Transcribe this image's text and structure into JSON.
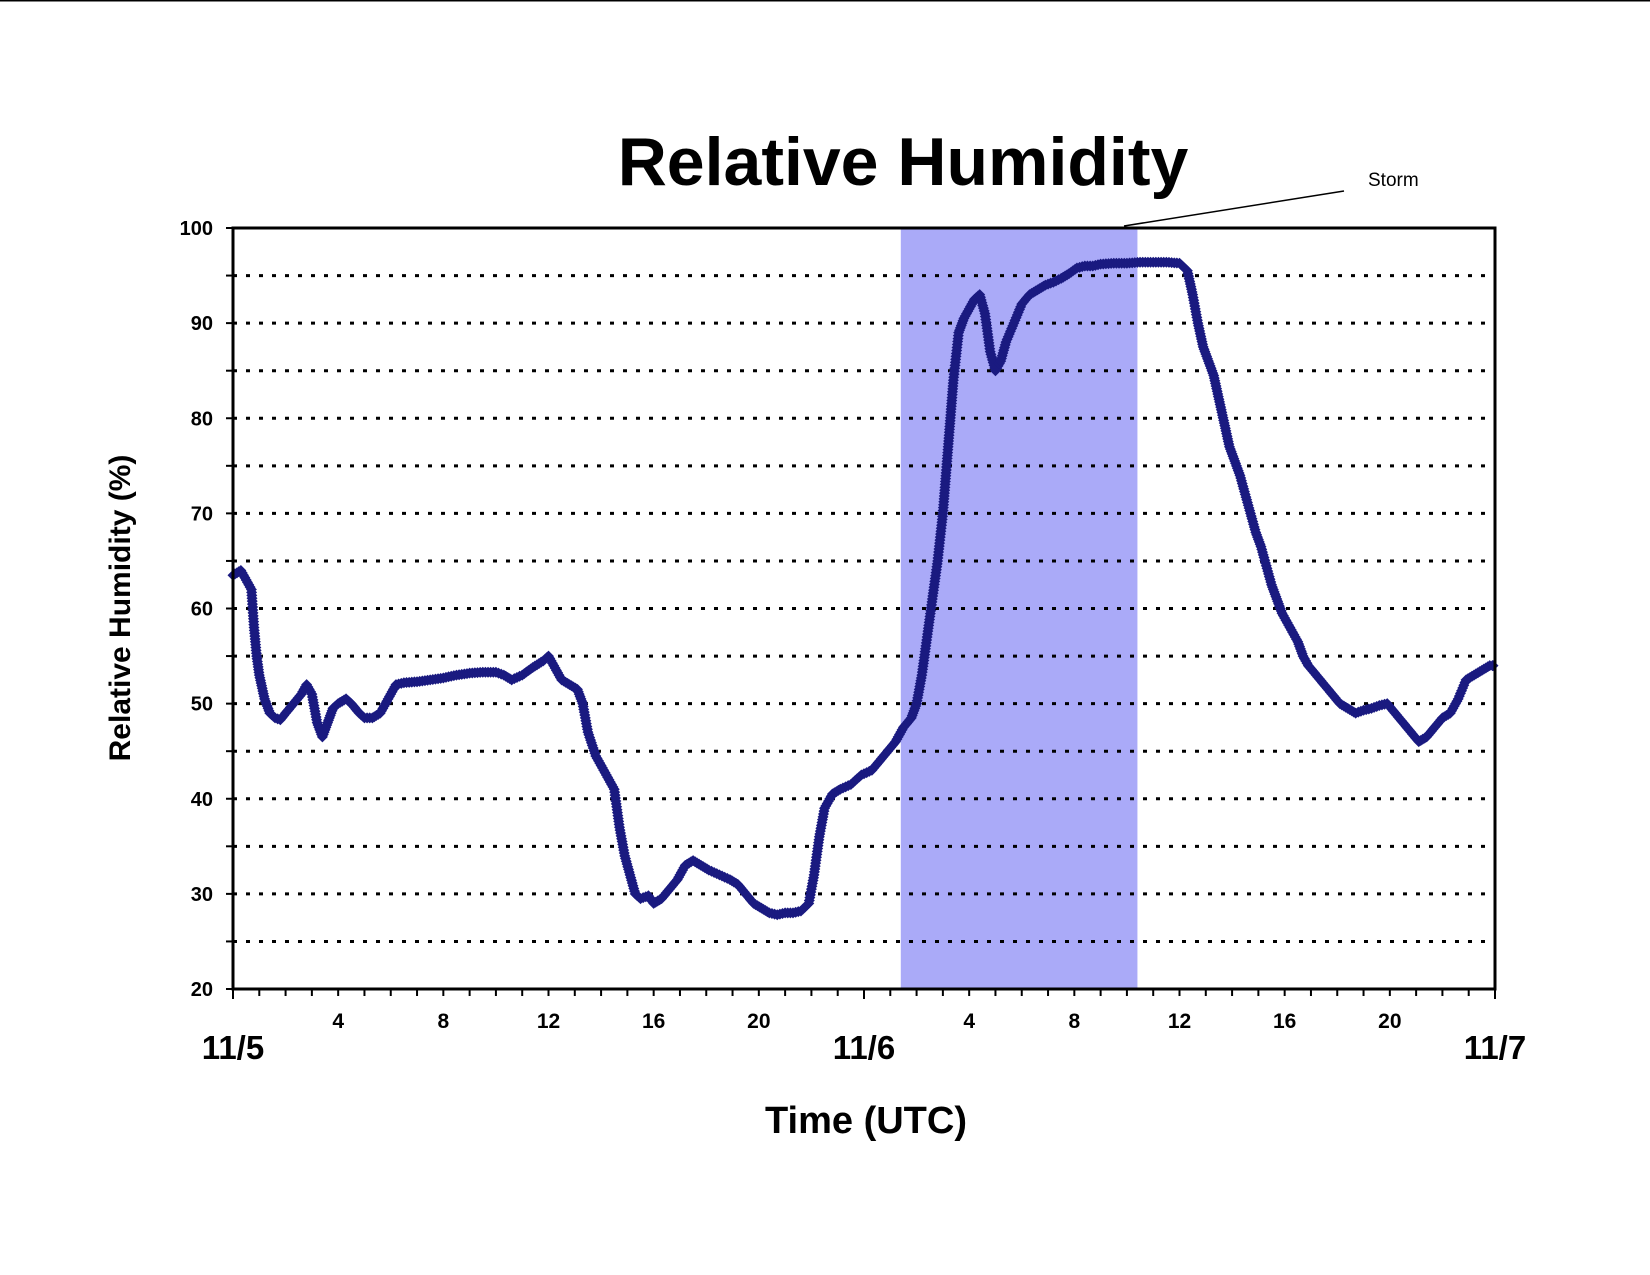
{
  "chart_data": {
    "type": "scatter",
    "title": "Relative Humidity",
    "xlabel": "Time (UTC)",
    "ylabel": "Relative Humidity (%)",
    "ylim": [
      20,
      100
    ],
    "y_ticks": [
      20,
      30,
      40,
      50,
      60,
      70,
      80,
      90,
      100
    ],
    "gridlines_y": [
      25,
      30,
      35,
      40,
      45,
      50,
      55,
      60,
      65,
      70,
      75,
      80,
      85,
      90,
      95
    ],
    "grid": "dotted horizontal",
    "xlim_hours": [
      0,
      48
    ],
    "x_tick_labels": [
      {
        "hour": 4,
        "label": "4"
      },
      {
        "hour": 8,
        "label": "8"
      },
      {
        "hour": 12,
        "label": "12"
      },
      {
        "hour": 16,
        "label": "16"
      },
      {
        "hour": 20,
        "label": "20"
      },
      {
        "hour": 28,
        "label": "4"
      },
      {
        "hour": 32,
        "label": "8"
      },
      {
        "hour": 36,
        "label": "12"
      },
      {
        "hour": 40,
        "label": "16"
      },
      {
        "hour": 44,
        "label": "20"
      }
    ],
    "day_labels": [
      {
        "hour": 0,
        "label": "11/5"
      },
      {
        "hour": 24,
        "label": "11/6"
      },
      {
        "hour": 48,
        "label": "11/7"
      }
    ],
    "shaded_region": {
      "label": "Storm",
      "x_start_hours": 25.4,
      "x_end_hours": 34.4,
      "color": "#aaaaf8"
    },
    "marker_color": "#1a1a80",
    "series": [
      {
        "points": [
          [
            0.0,
            63.5
          ],
          [
            0.3,
            64.0
          ],
          [
            0.5,
            63.0
          ],
          [
            0.7,
            62.0
          ],
          [
            0.8,
            58.0
          ],
          [
            0.9,
            55.0
          ],
          [
            1.0,
            53.0
          ],
          [
            1.2,
            50.5
          ],
          [
            1.4,
            49.0
          ],
          [
            1.6,
            48.5
          ],
          [
            1.8,
            48.3
          ],
          [
            2.0,
            49.0
          ],
          [
            2.3,
            50.0
          ],
          [
            2.6,
            51.0
          ],
          [
            2.8,
            52.0
          ],
          [
            3.0,
            51.0
          ],
          [
            3.2,
            48.0
          ],
          [
            3.4,
            46.5
          ],
          [
            3.6,
            48.0
          ],
          [
            3.8,
            49.5
          ],
          [
            4.0,
            50.0
          ],
          [
            4.3,
            50.5
          ],
          [
            4.5,
            50.0
          ],
          [
            4.8,
            49.0
          ],
          [
            5.0,
            48.5
          ],
          [
            5.3,
            48.5
          ],
          [
            5.6,
            49.0
          ],
          [
            5.9,
            50.5
          ],
          [
            6.2,
            52.0
          ],
          [
            6.5,
            52.2
          ],
          [
            7.0,
            52.3
          ],
          [
            7.5,
            52.5
          ],
          [
            8.0,
            52.7
          ],
          [
            8.5,
            53.0
          ],
          [
            9.0,
            53.2
          ],
          [
            9.5,
            53.3
          ],
          [
            10.0,
            53.3
          ],
          [
            10.3,
            53.0
          ],
          [
            10.6,
            52.5
          ],
          [
            11.0,
            53.0
          ],
          [
            11.4,
            53.8
          ],
          [
            11.8,
            54.5
          ],
          [
            12.0,
            55.0
          ],
          [
            12.2,
            54.0
          ],
          [
            12.5,
            52.5
          ],
          [
            12.8,
            52.0
          ],
          [
            13.1,
            51.5
          ],
          [
            13.3,
            50.0
          ],
          [
            13.5,
            47.0
          ],
          [
            13.8,
            44.5
          ],
          [
            14.1,
            43.0
          ],
          [
            14.3,
            42.0
          ],
          [
            14.5,
            41.0
          ],
          [
            14.7,
            37.0
          ],
          [
            14.9,
            34.0
          ],
          [
            15.1,
            32.0
          ],
          [
            15.3,
            30.0
          ],
          [
            15.5,
            29.5
          ],
          [
            15.8,
            29.8
          ],
          [
            16.0,
            29.0
          ],
          [
            16.3,
            29.5
          ],
          [
            16.6,
            30.5
          ],
          [
            16.9,
            31.5
          ],
          [
            17.2,
            33.0
          ],
          [
            17.5,
            33.5
          ],
          [
            17.8,
            33.0
          ],
          [
            18.1,
            32.5
          ],
          [
            18.5,
            32.0
          ],
          [
            18.9,
            31.5
          ],
          [
            19.2,
            31.0
          ],
          [
            19.5,
            30.0
          ],
          [
            19.8,
            29.0
          ],
          [
            20.1,
            28.5
          ],
          [
            20.4,
            28.0
          ],
          [
            20.7,
            27.8
          ],
          [
            21.0,
            28.0
          ],
          [
            21.3,
            28.0
          ],
          [
            21.6,
            28.2
          ],
          [
            21.9,
            29.0
          ],
          [
            22.1,
            32.0
          ],
          [
            22.3,
            36.0
          ],
          [
            22.5,
            39.0
          ],
          [
            22.8,
            40.5
          ],
          [
            23.1,
            41.0
          ],
          [
            23.5,
            41.5
          ],
          [
            23.9,
            42.5
          ],
          [
            24.3,
            43.0
          ],
          [
            24.6,
            44.0
          ],
          [
            24.9,
            45.0
          ],
          [
            25.2,
            46.0
          ],
          [
            25.5,
            47.5
          ],
          [
            25.8,
            48.5
          ],
          [
            26.0,
            50.0
          ],
          [
            26.2,
            53.0
          ],
          [
            26.4,
            57.0
          ],
          [
            26.6,
            61.0
          ],
          [
            26.8,
            65.0
          ],
          [
            27.0,
            70.0
          ],
          [
            27.2,
            77.0
          ],
          [
            27.4,
            84.0
          ],
          [
            27.6,
            89.0
          ],
          [
            27.8,
            90.5
          ],
          [
            28.0,
            91.5
          ],
          [
            28.2,
            92.5
          ],
          [
            28.4,
            93.0
          ],
          [
            28.6,
            91.0
          ],
          [
            28.8,
            87.0
          ],
          [
            29.0,
            85.0
          ],
          [
            29.2,
            86.0
          ],
          [
            29.4,
            88.0
          ],
          [
            29.7,
            90.0
          ],
          [
            30.0,
            92.0
          ],
          [
            30.3,
            93.0
          ],
          [
            30.6,
            93.5
          ],
          [
            30.9,
            94.0
          ],
          [
            31.2,
            94.3
          ],
          [
            31.5,
            94.7
          ],
          [
            31.8,
            95.2
          ],
          [
            32.1,
            95.8
          ],
          [
            32.4,
            96.0
          ],
          [
            32.7,
            96.0
          ],
          [
            33.0,
            96.2
          ],
          [
            33.5,
            96.3
          ],
          [
            34.0,
            96.3
          ],
          [
            34.5,
            96.4
          ],
          [
            35.0,
            96.4
          ],
          [
            35.5,
            96.4
          ],
          [
            36.0,
            96.3
          ],
          [
            36.3,
            95.5
          ],
          [
            36.5,
            93.0
          ],
          [
            36.7,
            90.0
          ],
          [
            36.9,
            87.5
          ],
          [
            37.1,
            86.0
          ],
          [
            37.3,
            84.5
          ],
          [
            37.5,
            82.0
          ],
          [
            37.7,
            79.5
          ],
          [
            37.9,
            77.0
          ],
          [
            38.1,
            75.5
          ],
          [
            38.3,
            74.0
          ],
          [
            38.5,
            72.0
          ],
          [
            38.7,
            70.0
          ],
          [
            38.9,
            68.0
          ],
          [
            39.1,
            66.5
          ],
          [
            39.3,
            64.5
          ],
          [
            39.5,
            62.5
          ],
          [
            39.7,
            61.0
          ],
          [
            39.9,
            59.5
          ],
          [
            40.1,
            58.5
          ],
          [
            40.3,
            57.5
          ],
          [
            40.5,
            56.5
          ],
          [
            40.7,
            55.0
          ],
          [
            40.9,
            54.0
          ],
          [
            41.2,
            53.0
          ],
          [
            41.5,
            52.0
          ],
          [
            41.8,
            51.0
          ],
          [
            42.1,
            50.0
          ],
          [
            42.4,
            49.5
          ],
          [
            42.7,
            49.0
          ],
          [
            43.0,
            49.3
          ],
          [
            43.3,
            49.5
          ],
          [
            43.6,
            49.8
          ],
          [
            43.9,
            50.0
          ],
          [
            44.2,
            49.0
          ],
          [
            44.5,
            48.0
          ],
          [
            44.8,
            47.0
          ],
          [
            45.1,
            46.0
          ],
          [
            45.4,
            46.5
          ],
          [
            45.7,
            47.5
          ],
          [
            46.0,
            48.5
          ],
          [
            46.3,
            49.0
          ],
          [
            46.6,
            50.5
          ],
          [
            46.9,
            52.5
          ],
          [
            47.2,
            53.0
          ],
          [
            47.5,
            53.5
          ],
          [
            47.8,
            54.0
          ],
          [
            48.0,
            54.0
          ]
        ]
      }
    ]
  }
}
